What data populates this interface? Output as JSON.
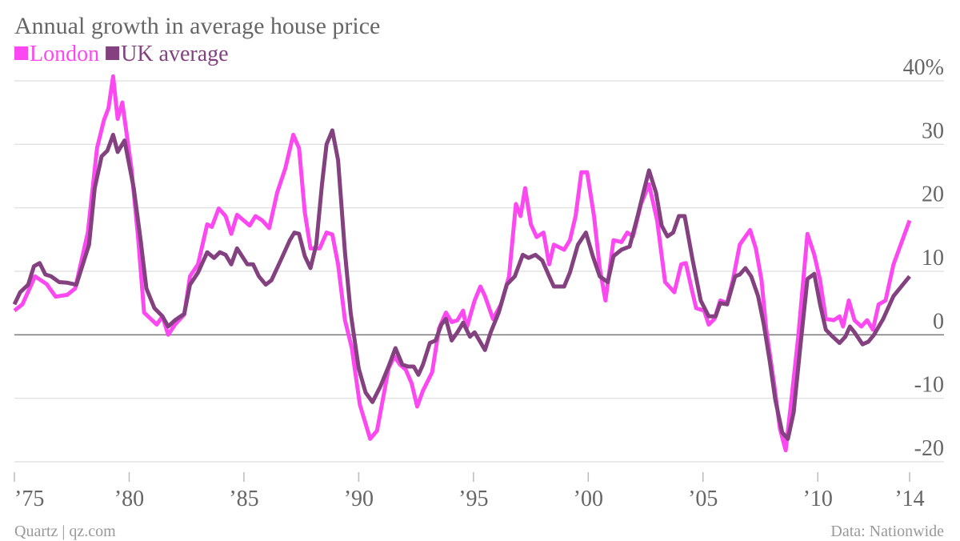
{
  "chart_data": {
    "type": "line",
    "title": "Annual growth in average house price",
    "source": "Quartz | qz.com",
    "credit": "Data: Nationwide",
    "xlim": [
      1975,
      2014
    ],
    "xticks": [
      {
        "value": 1975,
        "label": "’75"
      },
      {
        "value": 1980,
        "label": "’80"
      },
      {
        "value": 1985,
        "label": "’85"
      },
      {
        "value": 1990,
        "label": "’90"
      },
      {
        "value": 1995,
        "label": "’95"
      },
      {
        "value": 2000,
        "label": "’00"
      },
      {
        "value": 2005,
        "label": "’05"
      },
      {
        "value": 2010,
        "label": "’10"
      },
      {
        "value": 2014,
        "label": "’14"
      }
    ],
    "ylim": [
      -20,
      40
    ],
    "yticks": [
      {
        "value": 40,
        "label": "40%"
      },
      30,
      20,
      10,
      0,
      -10,
      -20
    ],
    "grid": true,
    "series": [
      {
        "name": "London",
        "color": "#fb48f0",
        "x": [
          1975.0,
          1975.35,
          1975.9,
          1976.4,
          1976.8,
          1977.3,
          1977.65,
          1978.2,
          1978.6,
          1978.9,
          1979.1,
          1979.3,
          1979.5,
          1979.7,
          1980.1,
          1980.4,
          1980.65,
          1981.2,
          1981.45,
          1981.7,
          1982.0,
          1982.4,
          1982.65,
          1983.0,
          1983.4,
          1983.6,
          1983.9,
          1984.2,
          1984.45,
          1984.7,
          1985.25,
          1985.5,
          1985.8,
          1986.1,
          1986.45,
          1986.8,
          1987.15,
          1987.4,
          1987.65,
          1987.9,
          1988.3,
          1988.6,
          1988.85,
          1989.1,
          1989.4,
          1989.7,
          1990.05,
          1990.5,
          1990.8,
          1991.3,
          1991.55,
          1991.8,
          1992.05,
          1992.3,
          1992.55,
          1992.8,
          1993.2,
          1993.5,
          1993.8,
          1994.05,
          1994.3,
          1994.55,
          1994.7,
          1995.05,
          1995.3,
          1995.5,
          1995.85,
          1996.2,
          1996.55,
          1996.85,
          1997.05,
          1997.25,
          1997.5,
          1997.75,
          1998.05,
          1998.3,
          1998.5,
          1998.95,
          1999.2,
          1999.45,
          1999.7,
          1999.95,
          2000.25,
          2000.5,
          2000.75,
          2001.1,
          2001.45,
          2001.7,
          2001.95,
          2002.3,
          2002.65,
          2003.0,
          2003.35,
          2003.75,
          2004.05,
          2004.25,
          2004.5,
          2004.7,
          2005.05,
          2005.25,
          2005.5,
          2005.75,
          2006.05,
          2006.3,
          2006.6,
          2007.05,
          2007.3,
          2007.55,
          2007.75,
          2008.1,
          2008.35,
          2008.6,
          2008.85,
          2009.15,
          2009.55,
          2009.85,
          2010.1,
          2010.35,
          2010.7,
          2010.95,
          2011.1,
          2011.35,
          2011.6,
          2011.9,
          2012.15,
          2012.4,
          2012.65,
          2012.95,
          2013.3,
          2014.0
        ],
        "values": [
          3.8,
          4.8,
          9.2,
          8.0,
          6.0,
          6.3,
          7.3,
          16.1,
          29.4,
          33.8,
          35.7,
          40.7,
          34.0,
          36.6,
          26.2,
          14.9,
          3.5,
          1.6,
          2.9,
          0,
          1.6,
          3.2,
          9.2,
          11.1,
          17.4,
          17.0,
          19.9,
          18.7,
          15.9,
          18.9,
          17.2,
          18.7,
          18.0,
          16.8,
          22.4,
          26.2,
          31.5,
          29.4,
          19.3,
          13.6,
          13.6,
          16.1,
          15.8,
          11.1,
          2.3,
          -2.1,
          -11.0,
          -16.4,
          -15.1,
          -5.3,
          -3.4,
          -4.7,
          -5.5,
          -7.6,
          -11.3,
          -8.8,
          -5.9,
          1.0,
          3.5,
          2.0,
          2.3,
          3.8,
          1.0,
          5.4,
          7.6,
          6.1,
          2.5,
          4.8,
          9.2,
          20.6,
          18.7,
          23.1,
          17.4,
          15.4,
          16.1,
          11.1,
          14.2,
          13.4,
          14.9,
          18.7,
          25.6,
          25.6,
          18.7,
          10.5,
          5.4,
          14.9,
          14.6,
          16.1,
          15.5,
          20.6,
          23.7,
          18.0,
          8.3,
          6.7,
          11.1,
          11.3,
          7.3,
          4.2,
          3.8,
          1.6,
          2.5,
          5.4,
          5.0,
          8.6,
          14.2,
          16.5,
          13.6,
          8.6,
          1.0,
          -7.8,
          -14.8,
          -18.2,
          -10.3,
          -0.3,
          15.9,
          12.6,
          8.6,
          2.5,
          2.3,
          2.9,
          1.3,
          5.4,
          2.3,
          1.3,
          2.3,
          0.8,
          4.8,
          5.4,
          11.1,
          18.0
        ]
      },
      {
        "name": "UK average",
        "color": "#83417f",
        "x": [
          1975.0,
          1975.25,
          1975.6,
          1975.85,
          1976.1,
          1976.35,
          1976.6,
          1976.95,
          1977.3,
          1977.7,
          1978.25,
          1978.5,
          1978.8,
          1979.05,
          1979.3,
          1979.5,
          1979.8,
          1980.2,
          1980.5,
          1980.75,
          1981.1,
          1981.45,
          1981.7,
          1982.0,
          1982.4,
          1982.65,
          1983.0,
          1983.4,
          1983.7,
          1983.95,
          1984.2,
          1984.45,
          1984.7,
          1985.15,
          1985.4,
          1985.65,
          1985.95,
          1986.2,
          1986.6,
          1987.0,
          1987.2,
          1987.4,
          1987.65,
          1987.9,
          1988.15,
          1988.4,
          1988.6,
          1988.85,
          1989.1,
          1989.4,
          1989.65,
          1990.0,
          1990.3,
          1990.6,
          1990.95,
          1991.3,
          1991.6,
          1991.9,
          1992.15,
          1992.4,
          1992.6,
          1992.8,
          1993.1,
          1993.35,
          1993.6,
          1993.8,
          1994.05,
          1994.3,
          1994.55,
          1994.85,
          1995.05,
          1995.5,
          1995.75,
          1996.1,
          1996.45,
          1996.8,
          1997.15,
          1997.4,
          1997.7,
          1998.0,
          1998.3,
          1998.5,
          1998.95,
          1999.2,
          1999.55,
          1999.9,
          2000.2,
          2000.5,
          2000.85,
          2001.1,
          2001.45,
          2001.8,
          2002.15,
          2002.4,
          2002.65,
          2002.95,
          2003.2,
          2003.45,
          2003.7,
          2003.95,
          2004.2,
          2004.55,
          2004.9,
          2005.25,
          2005.55,
          2005.75,
          2006.05,
          2006.4,
          2006.6,
          2006.85,
          2007.1,
          2007.4,
          2007.65,
          2007.9,
          2008.15,
          2008.45,
          2008.7,
          2008.95,
          2009.25,
          2009.55,
          2009.85,
          2010.1,
          2010.35,
          2010.65,
          2010.95,
          2011.2,
          2011.4,
          2011.6,
          2011.95,
          2012.2,
          2012.45,
          2012.85,
          2013.3,
          2014.0
        ],
        "values": [
          4.8,
          6.7,
          7.9,
          10.8,
          11.3,
          9.5,
          9.2,
          8.3,
          8.2,
          7.9,
          14.2,
          23.1,
          28.1,
          29.0,
          31.5,
          28.8,
          30.6,
          23.1,
          14.9,
          7.3,
          4.2,
          2.9,
          1.3,
          2.3,
          3.3,
          7.9,
          9.8,
          13.0,
          12.1,
          13.0,
          12.6,
          11.1,
          13.6,
          11.1,
          11.1,
          9.2,
          7.9,
          8.6,
          11.7,
          14.9,
          16.1,
          15.9,
          12.4,
          10.5,
          14.2,
          23.7,
          30.0,
          32.2,
          27.5,
          13.0,
          3.5,
          -5.3,
          -9.1,
          -10.6,
          -8.1,
          -5.0,
          -2.1,
          -4.7,
          -5.0,
          -5.0,
          -6.3,
          -4.7,
          -1.3,
          -0.9,
          1.6,
          2.5,
          -0.9,
          0.4,
          1.9,
          -0.3,
          0.4,
          -2.4,
          0.4,
          3.5,
          7.9,
          9.2,
          12.6,
          12.1,
          12.6,
          11.7,
          9.2,
          7.6,
          7.6,
          9.8,
          14.2,
          16.1,
          12.4,
          9.2,
          8.3,
          12.4,
          13.4,
          13.9,
          18.7,
          22.4,
          25.9,
          22.4,
          17.2,
          15.5,
          16.1,
          18.7,
          18.7,
          11.7,
          5.4,
          2.9,
          2.9,
          5.0,
          4.8,
          9.2,
          9.5,
          10.5,
          9.2,
          6.1,
          1.6,
          -4.0,
          -10.3,
          -15.4,
          -16.4,
          -12.2,
          -1.5,
          8.8,
          9.6,
          4.8,
          0.8,
          -0.3,
          -1.3,
          -0.3,
          1.3,
          0.4,
          -1.5,
          -1.1,
          0,
          2.5,
          6.1,
          9.2
        ]
      }
    ]
  }
}
